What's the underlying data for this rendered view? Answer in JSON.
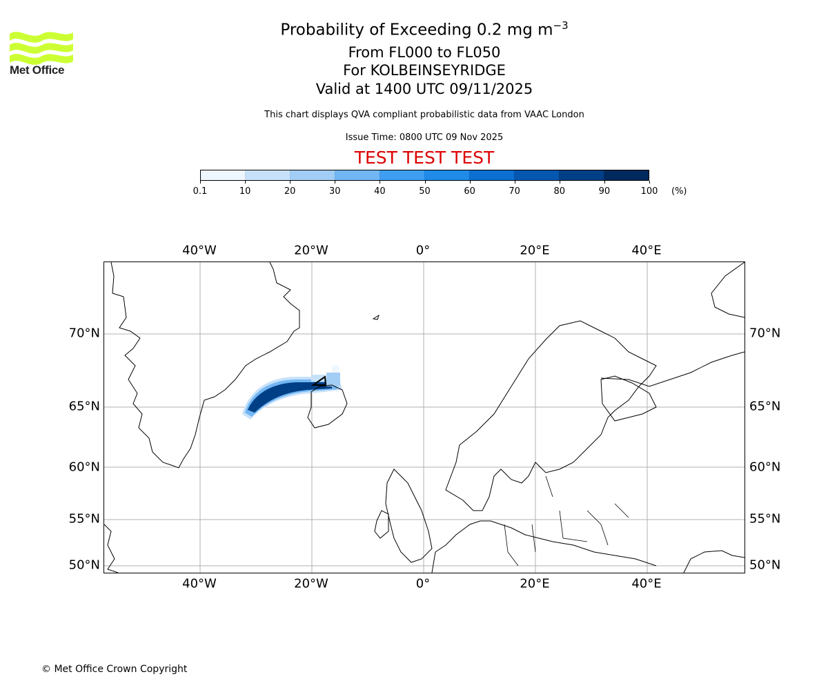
{
  "logo": {
    "text": "Met Office",
    "color": "#ccff33"
  },
  "title": {
    "line1_prefix": "Probability of Exceeding 0.2 mg m",
    "line1_sup": "−3",
    "line2": "From FL000 to FL050",
    "line3": "For KOLBEINSEYRIDGE",
    "line4": "Valid at 1400 UTC 09/11/2025"
  },
  "subtitle": "This chart displays QVA compliant probabilistic data from VAAC London",
  "issue_time": "Issue Time: 0800 UTC 09 Nov 2025",
  "test_banner": "TEST TEST TEST",
  "colorbar": {
    "ticks": [
      "0.1",
      "10",
      "20",
      "30",
      "40",
      "50",
      "60",
      "70",
      "80",
      "90",
      "100"
    ],
    "units": "(%)",
    "colors": [
      "#eef6fe",
      "#c7e1fa",
      "#a2cdf5",
      "#72b6f3",
      "#3f9ef2",
      "#1f8ae8",
      "#0c6fd2",
      "#0557b0",
      "#003f85",
      "#002a5e"
    ]
  },
  "map": {
    "top_lon_labels": [
      "40°W",
      "20°W",
      "0°",
      "20°E",
      "40°E"
    ],
    "bottom_lon_labels": [
      "40°W",
      "20°W",
      "0°",
      "20°E",
      "40°E"
    ],
    "left_lat_labels": [
      "70°N",
      "65°N",
      "60°N",
      "55°N",
      "50°N"
    ],
    "right_lat_labels": [
      "70°N",
      "65°N",
      "60°N",
      "55°N",
      "50°N"
    ]
  },
  "footer": "© Met Office Crown Copyright"
}
